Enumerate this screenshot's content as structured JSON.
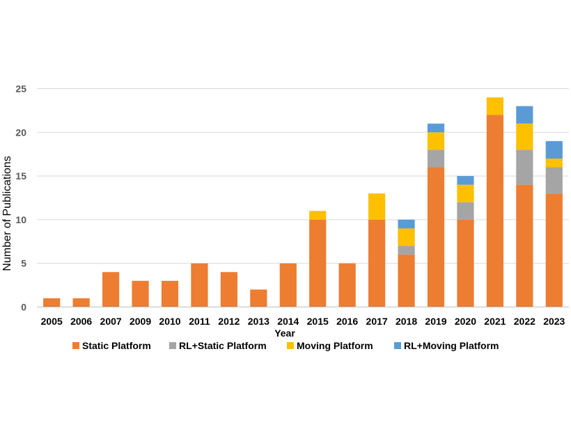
{
  "chart_data": {
    "type": "bar",
    "stacked": true,
    "xlabel": "Year",
    "ylabel": "Number of Publications",
    "ylim": [
      0,
      25
    ],
    "yticks": [
      0,
      5,
      10,
      15,
      20,
      25
    ],
    "grid": true,
    "legend_position": "bottom",
    "categories": [
      "2005",
      "2006",
      "2007",
      "2009",
      "2010",
      "2011",
      "2012",
      "2013",
      "2014",
      "2015",
      "2016",
      "2017",
      "2018",
      "2019",
      "2020",
      "2021",
      "2022",
      "2023"
    ],
    "series": [
      {
        "name": "Static Platform",
        "color": "#ED7D31",
        "values": [
          1,
          1,
          4,
          3,
          3,
          5,
          4,
          2,
          5,
          10,
          5,
          10,
          6,
          16,
          10,
          22,
          14,
          13
        ]
      },
      {
        "name": "RL+Static Platform",
        "color": "#A5A5A5",
        "values": [
          0,
          0,
          0,
          0,
          0,
          0,
          0,
          0,
          0,
          0,
          0,
          0,
          1,
          2,
          2,
          0,
          4,
          3
        ]
      },
      {
        "name": "Moving Platform",
        "color": "#FFC000",
        "values": [
          0,
          0,
          0,
          0,
          0,
          0,
          0,
          0,
          0,
          1,
          0,
          3,
          2,
          2,
          2,
          2,
          3,
          1
        ]
      },
      {
        "name": "RL+Moving Platform",
        "color": "#5B9BD5",
        "values": [
          0,
          0,
          0,
          0,
          0,
          0,
          0,
          0,
          0,
          0,
          0,
          0,
          1,
          1,
          1,
          0,
          2,
          2
        ]
      }
    ]
  }
}
